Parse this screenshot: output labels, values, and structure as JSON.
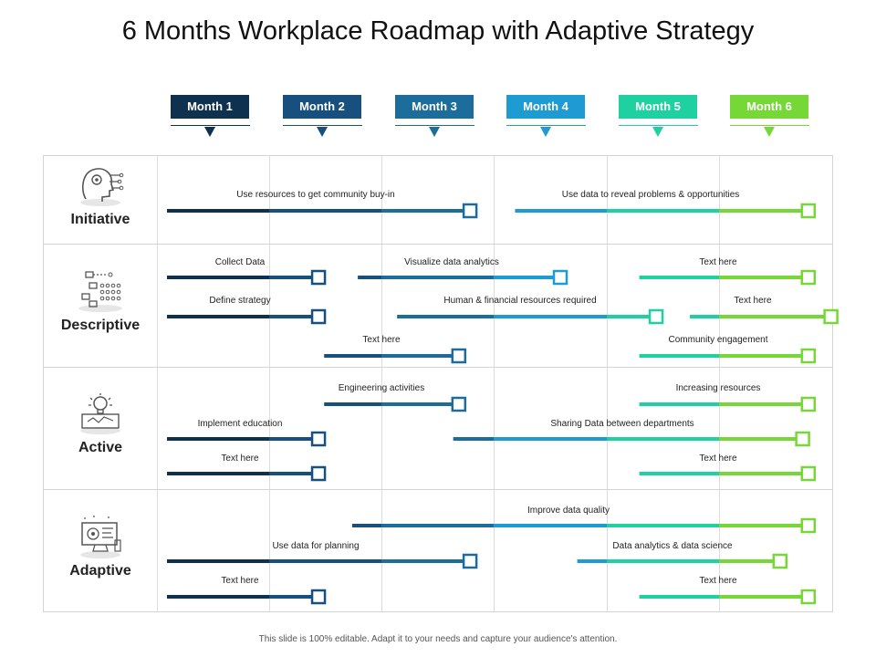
{
  "title": "6 Months Workplace Roadmap with Adaptive Strategy",
  "footer": "This slide is 100% editable. Adapt it to your needs and capture your audience's attention.",
  "months": [
    {
      "label": "Month 1",
      "color": "#0f3150"
    },
    {
      "label": "Month 2",
      "color": "#17507f"
    },
    {
      "label": "Month 3",
      "color": "#1d6d9c"
    },
    {
      "label": "Month 4",
      "color": "#1f9bd4"
    },
    {
      "label": "Month 5",
      "color": "#1fd1a0"
    },
    {
      "label": "Month 6",
      "color": "#76d837"
    }
  ],
  "rows": [
    {
      "label": "Initiative",
      "icon": "head-gears-icon"
    },
    {
      "label": "Descriptive",
      "icon": "flowchart-icon"
    },
    {
      "label": "Active",
      "icon": "lightbulb-icon"
    },
    {
      "label": "Adaptive",
      "icon": "computer-dashboard-icon"
    }
  ],
  "bars": [
    {
      "row": "Initiative",
      "label": "Use resources to get community buy-in",
      "start_month": 1.0,
      "end_month": 3.7
    },
    {
      "row": "Initiative",
      "label": "Use data to reveal problems & opportunities",
      "start_month": 4.1,
      "end_month": 6.7
    },
    {
      "row": "Descriptive",
      "label": "Collect Data",
      "start_month": 1.0,
      "end_month": 2.35
    },
    {
      "row": "Descriptive",
      "label": "Visualize data analytics",
      "start_month": 2.7,
      "end_month": 4.5
    },
    {
      "row": "Descriptive",
      "label": "Text here",
      "start_month": 5.2,
      "end_month": 6.7
    },
    {
      "row": "Descriptive",
      "label": "Define strategy",
      "start_month": 1.0,
      "end_month": 2.35
    },
    {
      "row": "Descriptive",
      "label": "Human & financial resources required",
      "start_month": 3.05,
      "end_month": 5.35
    },
    {
      "row": "Descriptive",
      "label": "Text here",
      "start_month": 5.65,
      "end_month": 6.9
    },
    {
      "row": "Descriptive",
      "label": "Text here",
      "start_month": 2.4,
      "end_month": 3.6
    },
    {
      "row": "Descriptive",
      "label": "Community engagement",
      "start_month": 5.2,
      "end_month": 6.7
    },
    {
      "row": "Active",
      "label": "Engineering activities",
      "start_month": 2.4,
      "end_month": 3.6
    },
    {
      "row": "Active",
      "label": "Increasing resources",
      "start_month": 5.2,
      "end_month": 6.7
    },
    {
      "row": "Active",
      "label": "Implement education",
      "start_month": 1.0,
      "end_month": 2.35
    },
    {
      "row": "Active",
      "label": "Sharing Data between departments",
      "start_month": 3.55,
      "end_month": 6.65
    },
    {
      "row": "Active",
      "label": "Text here",
      "start_month": 1.0,
      "end_month": 2.35
    },
    {
      "row": "Active",
      "label": "Text here",
      "start_month": 5.2,
      "end_month": 6.7
    },
    {
      "row": "Adaptive",
      "label": "Improve data quality",
      "start_month": 2.65,
      "end_month": 6.7
    },
    {
      "row": "Adaptive",
      "label": "Use data for planning",
      "start_month": 1.0,
      "end_month": 3.7
    },
    {
      "row": "Adaptive",
      "label": "Data analytics & data science",
      "start_month": 4.65,
      "end_month": 6.45
    },
    {
      "row": "Adaptive",
      "label": "Text here",
      "start_month": 1.0,
      "end_month": 2.35
    },
    {
      "row": "Adaptive",
      "label": "Text here",
      "start_month": 5.2,
      "end_month": 6.7
    }
  ]
}
